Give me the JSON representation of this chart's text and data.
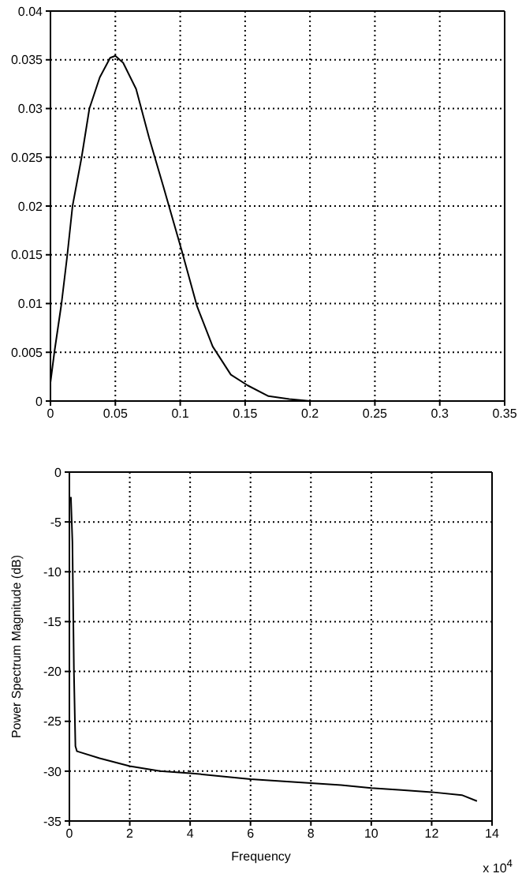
{
  "chart_data": [
    {
      "type": "line",
      "xlim": [
        0,
        0.35
      ],
      "xticks": [
        0,
        0.05,
        0.1,
        0.15,
        0.2,
        0.25,
        0.3,
        0.35
      ],
      "ylim": [
        0,
        0.04
      ],
      "yticks": [
        0,
        0.005,
        0.01,
        0.015,
        0.02,
        0.025,
        0.03,
        0.035,
        0.04
      ],
      "grid": true,
      "color": "#000000",
      "x": [
        0,
        0.003,
        0.0085,
        0.013,
        0.017,
        0.024,
        0.03,
        0.038,
        0.046,
        0.05,
        0.056,
        0.066,
        0.076,
        0.087,
        0.101,
        0.113,
        0.125,
        0.139,
        0.152,
        0.168,
        0.184,
        0.2,
        0.245,
        0.343
      ],
      "values": [
        0.0019,
        0.005,
        0.01,
        0.015,
        0.02,
        0.025,
        0.03,
        0.0332,
        0.0352,
        0.0354,
        0.0347,
        0.032,
        0.027,
        0.022,
        0.0155,
        0.0097,
        0.0056,
        0.0027,
        0.0016,
        0.0005,
        0.0002,
        0,
        0,
        0
      ]
    },
    {
      "type": "line",
      "xlabel": "Frequency",
      "ylabel": "Power Spectrum Magnitude (dB)",
      "annotations": [
        "x 10$^{4}$"
      ],
      "xlim": [
        0,
        14
      ],
      "xticks": [
        0,
        2,
        4,
        6,
        8,
        10,
        12,
        14
      ],
      "ylim": [
        -35,
        0
      ],
      "yticks": [
        -35,
        -30,
        -25,
        -20,
        -15,
        -10,
        -5,
        0
      ],
      "grid": true,
      "color": "#000000",
      "x": [
        0.05,
        0.1,
        0.15,
        0.2,
        0.25,
        1,
        2,
        3,
        4,
        5,
        6,
        7,
        8,
        9,
        10,
        11,
        12,
        13,
        13.5
      ],
      "values": [
        -2.5,
        -7,
        -20,
        -27.5,
        -28,
        -28.7,
        -29.5,
        -30,
        -30.2,
        -30.5,
        -30.8,
        -31,
        -31.2,
        -31.4,
        -31.7,
        -31.9,
        -32.1,
        -32.4,
        -33
      ]
    }
  ]
}
